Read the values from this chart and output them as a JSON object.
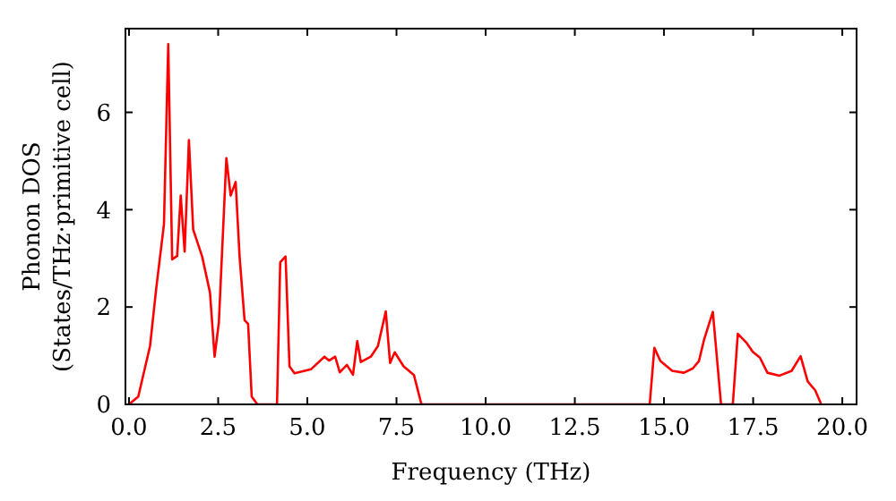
{
  "chart_data": {
    "type": "line",
    "xlabel": "Frequency (THz)",
    "ylabel": "Phonon DOS\n(States/THz·primitive cell)",
    "x": [
      0.0,
      0.26,
      0.59,
      0.76,
      0.98,
      1.1,
      1.21,
      1.35,
      1.45,
      1.56,
      1.68,
      1.8,
      2.05,
      2.27,
      2.4,
      2.52,
      2.73,
      2.85,
      2.99,
      3.1,
      3.24,
      3.34,
      3.44,
      3.6,
      4.15,
      4.24,
      4.39,
      4.5,
      4.64,
      5.1,
      5.48,
      5.61,
      5.78,
      5.91,
      6.11,
      6.28,
      6.4,
      6.5,
      6.78,
      6.98,
      7.2,
      7.32,
      7.45,
      7.7,
      7.99,
      8.2,
      14.6,
      14.73,
      14.9,
      15.23,
      15.56,
      15.81,
      15.98,
      16.12,
      16.37,
      16.6,
      16.93,
      17.07,
      17.32,
      17.49,
      17.69,
      17.9,
      18.24,
      18.58,
      18.83,
      19.03,
      19.24,
      19.41
    ],
    "series": [
      {
        "color": "#ff0000",
        "values": [
          0,
          0.16,
          1.2,
          2.36,
          3.7,
          7.4,
          2.98,
          3.05,
          4.29,
          3.14,
          5.43,
          3.59,
          3.04,
          2.3,
          0.98,
          1.69,
          5.06,
          4.29,
          4.57,
          3.04,
          1.73,
          1.65,
          0.16,
          0,
          0,
          2.92,
          3.04,
          0.78,
          0.64,
          0.72,
          0.98,
          0.9,
          0.98,
          0.66,
          0.81,
          0.61,
          1.3,
          0.87,
          0.98,
          1.2,
          1.91,
          0.85,
          1.07,
          0.78,
          0.6,
          0,
          0,
          1.16,
          0.89,
          0.69,
          0.65,
          0.74,
          0.89,
          1.32,
          1.9,
          0,
          0,
          1.45,
          1.26,
          1.08,
          0.96,
          0.65,
          0.59,
          0.69,
          0.99,
          0.47,
          0.29,
          0
        ]
      }
    ],
    "xlim": [
      -0.1,
      20.4
    ],
    "xticks": [
      {
        "value": 0,
        "label": "0.0"
      },
      {
        "value": 2.5,
        "label": "2.5"
      },
      {
        "value": 5,
        "label": "5.0"
      },
      {
        "value": 7.5,
        "label": "7.5"
      },
      {
        "value": 10,
        "label": "10.0"
      },
      {
        "value": 12.5,
        "label": "12.5"
      },
      {
        "value": 15,
        "label": "15.0"
      },
      {
        "value": 17.5,
        "label": "17.5"
      },
      {
        "value": 20,
        "label": "20.0"
      }
    ],
    "ylim": [
      0,
      7.72
    ],
    "yticks": [
      0,
      2,
      4,
      6
    ],
    "grid": false,
    "legend": false,
    "marker": "none",
    "line_style": "solid"
  }
}
